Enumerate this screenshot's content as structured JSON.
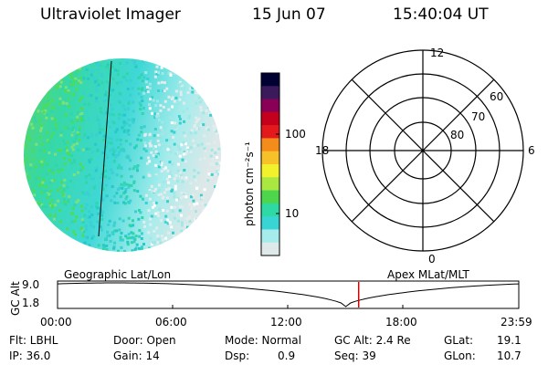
{
  "header": {
    "instrument": "Ultraviolet Imager",
    "date": "15 Jun 07",
    "time": "15:40:04 UT"
  },
  "colorbar": {
    "unit_label": "photon cm⁻²s⁻¹",
    "ticks": [
      "100",
      "10"
    ],
    "colors": [
      "#000033",
      "#3a1a5a",
      "#8b0057",
      "#c4001d",
      "#e31a1c",
      "#f48c1c",
      "#f7c12a",
      "#f2f22c",
      "#a8e840",
      "#4dd64b",
      "#2ed9a4",
      "#39d4d4",
      "#a6ecec",
      "#dfe9e9"
    ]
  },
  "polar": {
    "mlt_labels": {
      "top": "12",
      "left": "18",
      "right": "6",
      "bottom": "0"
    },
    "lat_labels": [
      "60",
      "70",
      "80"
    ]
  },
  "altitude_panel": {
    "axis_label": "GC Alt",
    "y_ticks": [
      "9.0",
      "1.8"
    ],
    "left_caption": "Geographic Lat/Lon",
    "right_caption": "Apex MLat/MLT",
    "x_ticks": [
      "00:00",
      "06:00",
      "12:00",
      "18:00",
      "23:59"
    ],
    "current_marker_time": "15:40:04",
    "marker_color": "#d40000"
  },
  "status": {
    "flt": "Flt: LBHL",
    "door": "Door: Open",
    "mode": "Mode: Normal",
    "gc_alt": "GC Alt: 2.4 Re",
    "glat_label": "GLat:",
    "glat_value": "19.1",
    "ip": "IP: 36.0",
    "gain": "Gain: 14",
    "dsp_label": "Dsp:",
    "dsp_value": "0.9",
    "seq": "Seq: 39",
    "glon_label": "GLon:",
    "glon_value": "10.7"
  }
}
